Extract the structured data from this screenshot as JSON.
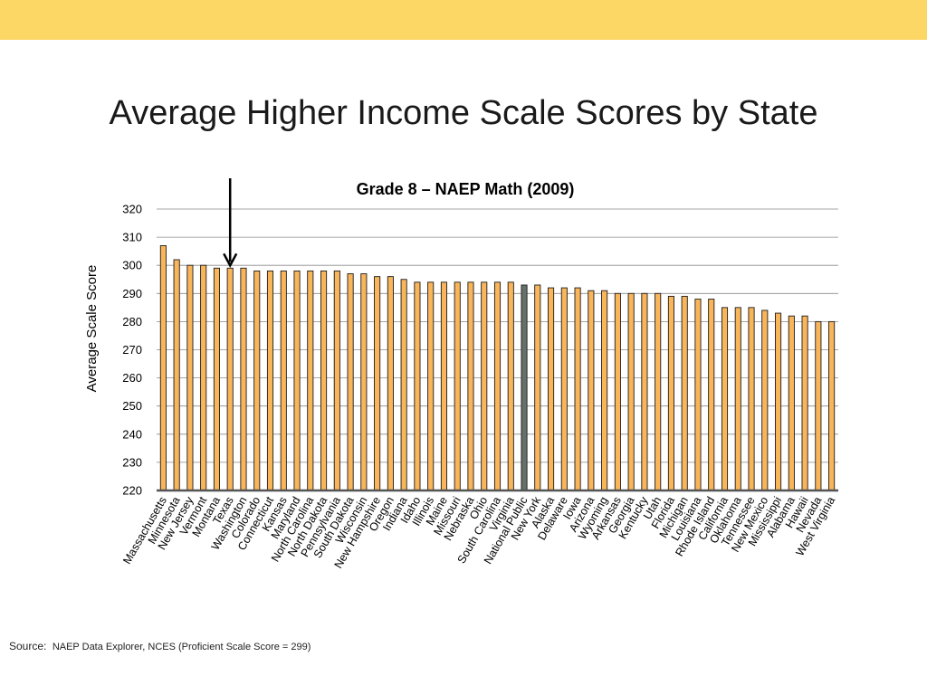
{
  "slide": {
    "title": "Average Higher Income Scale Scores by State",
    "source_label": "Source:",
    "source_text": "NAEP Data Explorer, NCES (Proficient Scale Score = 299)",
    "band_color": "#FCD766"
  },
  "chart_data": {
    "type": "bar",
    "title": "Grade 8 – NAEP Math (2009)",
    "xlabel": "",
    "ylabel": "Average Scale Score",
    "ylim": [
      220,
      320
    ],
    "yticks": [
      220,
      230,
      240,
      250,
      260,
      270,
      280,
      290,
      300,
      310,
      320
    ],
    "grid": true,
    "legend": "none",
    "bar_color": "#F9B55A",
    "highlight_color": "#637168",
    "highlight_category": "National Public",
    "annotation": {
      "type": "arrow",
      "target": "Texas",
      "icon": "down-arrow-icon"
    },
    "categories": [
      "Massachusetts",
      "Minnesota",
      "New Jersey",
      "Vermont",
      "Montana",
      "Texas",
      "Washington",
      "Colorado",
      "Connecticut",
      "Kansas",
      "Maryland",
      "North Carolina",
      "North Dakota",
      "Pennsylvania",
      "South Dakota",
      "Wisconsin",
      "New Hampshire",
      "Oregon",
      "Indiana",
      "Idaho",
      "Illinois",
      "Maine",
      "Missouri",
      "Nebraska",
      "Ohio",
      "South Carolina",
      "Virginia",
      "National Public",
      "New York",
      "Alaska",
      "Delaware",
      "Iowa",
      "Arizona",
      "Wyoming",
      "Arkansas",
      "Georgia",
      "Kentucky",
      "Utah",
      "Florida",
      "Michigan",
      "Louisiana",
      "Rhode Island",
      "California",
      "Oklahoma",
      "Tennessee",
      "New Mexico",
      "Mississippi",
      "Alabama",
      "Hawaii",
      "Nevada",
      "West Virginia"
    ],
    "values": [
      307,
      302,
      300,
      300,
      299,
      299,
      299,
      298,
      298,
      298,
      298,
      298,
      298,
      298,
      297,
      297,
      296,
      296,
      295,
      294,
      294,
      294,
      294,
      294,
      294,
      294,
      294,
      293,
      293,
      292,
      292,
      292,
      291,
      291,
      290,
      290,
      290,
      290,
      289,
      289,
      288,
      288,
      285,
      285,
      285,
      284,
      283,
      282,
      282,
      280,
      280
    ]
  }
}
